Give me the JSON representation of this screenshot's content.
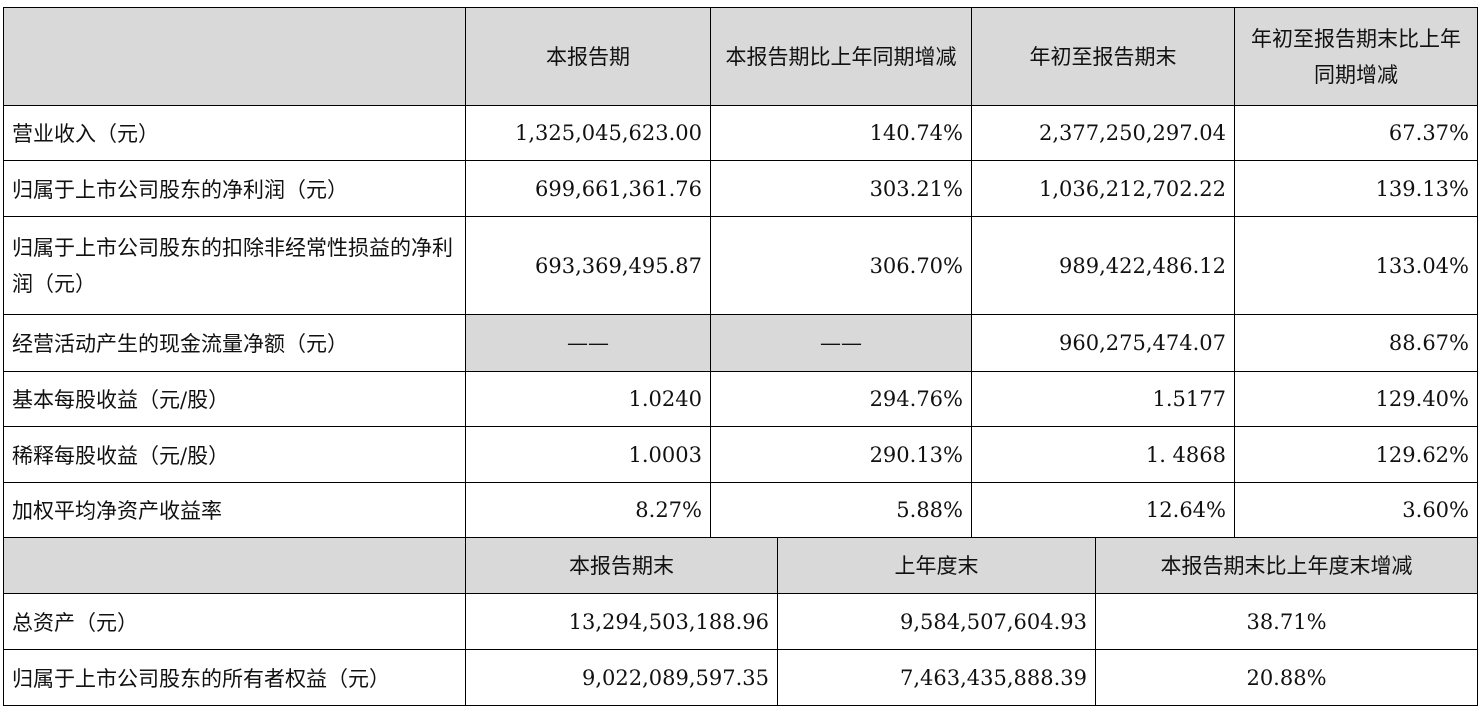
{
  "section1": {
    "headers": [
      "",
      "本报告期",
      "本报告期比上年同期增减",
      "年初至报告期末",
      "年初至报告期末比上年同期增减"
    ],
    "rows": [
      {
        "label": "营业收入（元）",
        "current": "1,325,045,623.00",
        "current_change": "140.74%",
        "ytd": "2,377,250,297.04",
        "ytd_change": "67.37%"
      },
      {
        "label": "归属于上市公司股东的净利润（元）",
        "current": "699,661,361.76",
        "current_change": "303.21%",
        "ytd": "1,036,212,702.22",
        "ytd_change": "139.13%"
      },
      {
        "label": "归属于上市公司股东的扣除非经常性损益的净利润（元）",
        "current": "693,369,495.87",
        "current_change": "306.70%",
        "ytd": "989,422,486.12",
        "ytd_change": "133.04%"
      },
      {
        "label": "经营活动产生的现金流量净额（元）",
        "current": "——",
        "current_change": "——",
        "ytd": "960,275,474.07",
        "ytd_change": "88.67%"
      },
      {
        "label": "基本每股收益（元/股）",
        "current": "1.0240",
        "current_change": "294.76%",
        "ytd": "1.5177",
        "ytd_change": "129.40%"
      },
      {
        "label": "稀释每股收益（元/股）",
        "current": "1.0003",
        "current_change": "290.13%",
        "ytd": "1. 4868",
        "ytd_change": "129.62%"
      },
      {
        "label": "加权平均净资产收益率",
        "current": "8.27%",
        "current_change": "5.88%",
        "ytd": "12.64%",
        "ytd_change": "3.60%"
      }
    ]
  },
  "section2": {
    "headers": [
      "",
      "本报告期末",
      "上年度末",
      "本报告期末比上年度末增减"
    ],
    "rows": [
      {
        "label": "总资产（元）",
        "period_end": "13,294,503,188.96",
        "prior_year_end": "9,584,507,604.93",
        "change": "38.71%"
      },
      {
        "label": "归属于上市公司股东的所有者权益（元）",
        "period_end": "9,022,089,597.35",
        "prior_year_end": "7,463,435,888.39",
        "change": "20.88%"
      }
    ]
  }
}
